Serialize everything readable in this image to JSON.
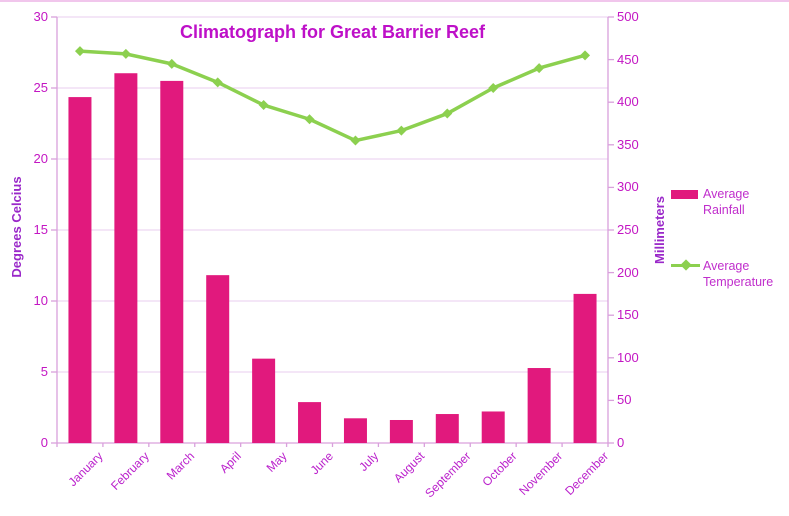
{
  "palette": {
    "bar_pink": "#E1197D",
    "line_green": "#8CD04F",
    "title_magenta": "#BE10C8",
    "tick_magenta": "#C316C3",
    "month_label_magenta": "#BB22CC",
    "axis_title_purple": "#9A28C9",
    "gridline": "#E8CDEF",
    "axis_line": "#D9A0DC",
    "frame_pink": "#F1C6EC",
    "legend_text": "#C02ECC"
  },
  "chart_data": {
    "type": "bar",
    "subtype": "combo-bar-line",
    "title": "Climatograph for Great Barrier Reef",
    "categories": [
      "January",
      "February",
      "March",
      "April",
      "May",
      "June",
      "July",
      "August",
      "September",
      "October",
      "November",
      "December"
    ],
    "series": [
      {
        "name": "Average Rainfall",
        "type": "bar",
        "axis": "right",
        "unit": "mm",
        "values": [
          406,
          434,
          425,
          197,
          99,
          48,
          29,
          27,
          34,
          37,
          88,
          175
        ]
      },
      {
        "name": "Average Temperature",
        "type": "line",
        "axis": "left",
        "unit": "degrees",
        "marker": "diamond",
        "values": [
          27.6,
          27.4,
          26.7,
          25.4,
          23.8,
          22.8,
          21.3,
          22.0,
          23.2,
          25.0,
          26.4,
          27.3
        ]
      }
    ],
    "left_axis": {
      "label": "Degrees Celcius",
      "min": 0,
      "max": 30,
      "step": 5,
      "ticks": [
        0,
        5,
        10,
        15,
        20,
        25,
        30
      ]
    },
    "right_axis": {
      "label": "Millimeters",
      "min": 0,
      "max": 500,
      "step": 50,
      "ticks": [
        0,
        50,
        100,
        150,
        200,
        250,
        300,
        350,
        400,
        450,
        500
      ]
    },
    "legend": {
      "position": "right",
      "entries": [
        "Average Rainfall",
        "Average Temperature"
      ]
    },
    "grid": "horizontal-major-left-axis"
  }
}
